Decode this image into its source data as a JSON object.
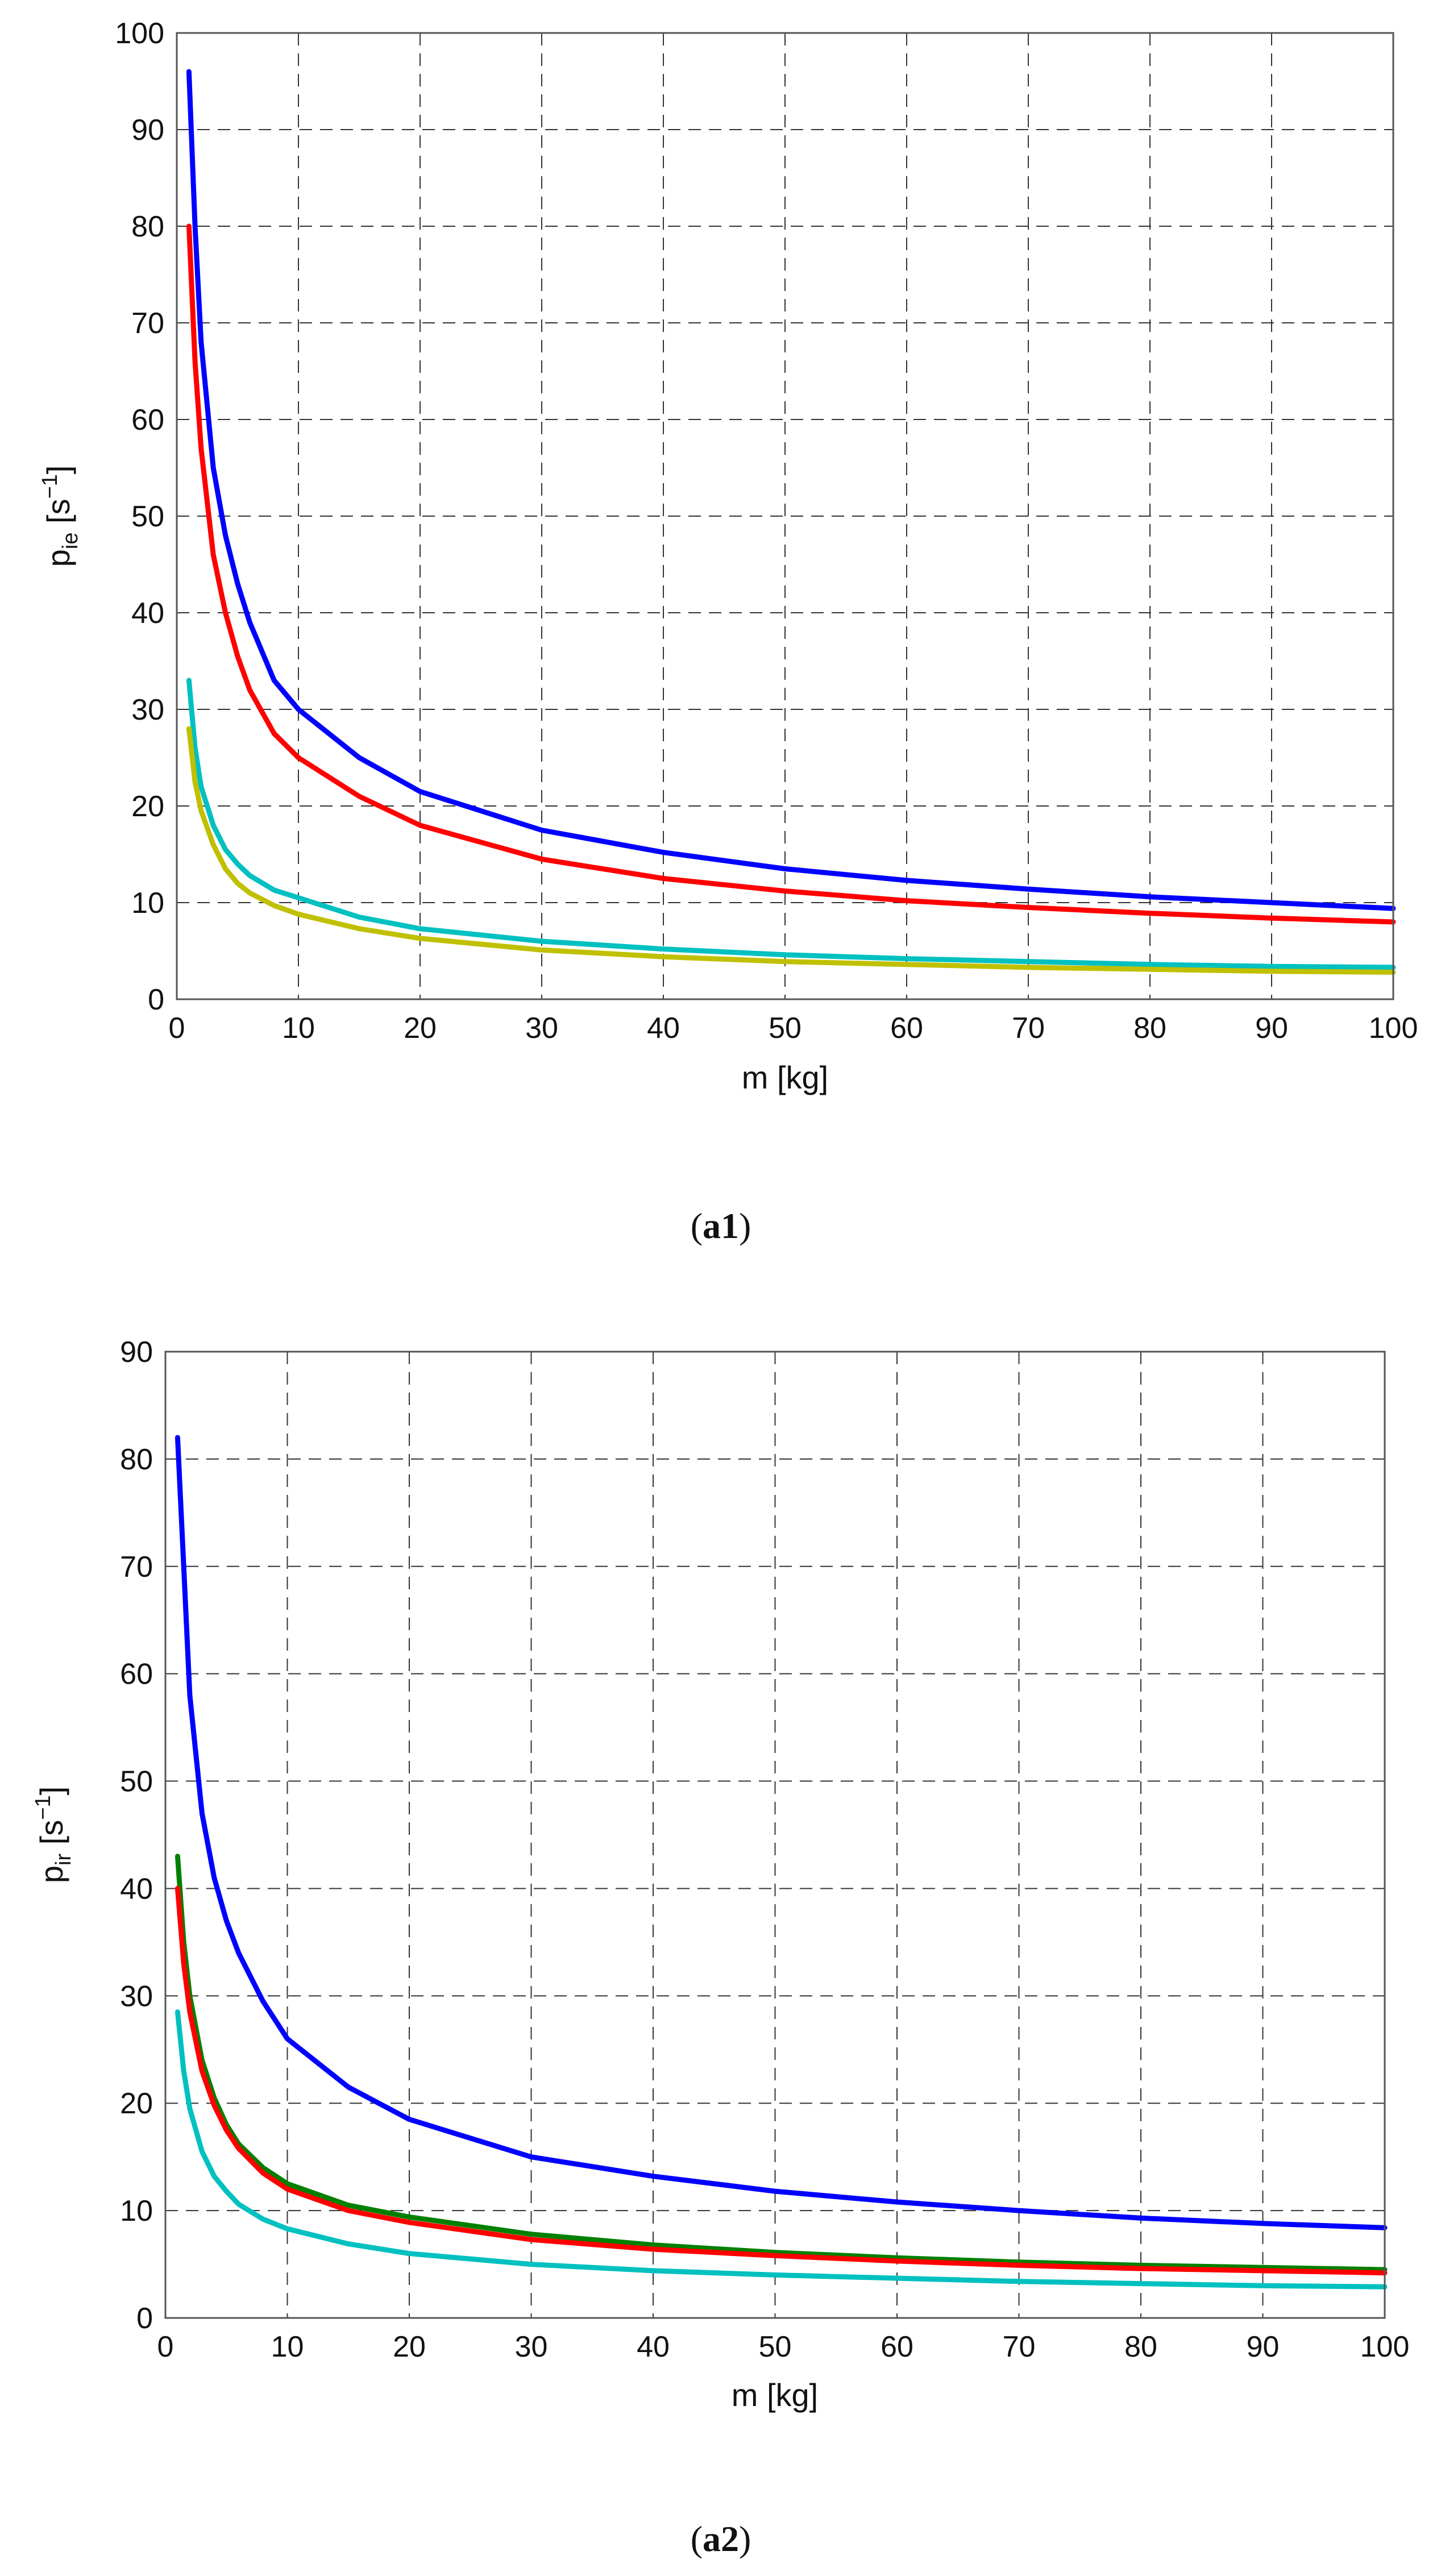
{
  "chart_data": [
    {
      "type": "line",
      "caption": {
        "open": "(",
        "bold": "a1",
        "close": ")"
      },
      "xlabel": "m [kg]",
      "ylabel": {
        "main": "p",
        "sub": "ie",
        "unit_open": " [s",
        "unit_sup": "−1",
        "unit_close": "]"
      },
      "xlim": [
        0,
        100
      ],
      "ylim": [
        0,
        100
      ],
      "xticks": [
        0,
        10,
        20,
        30,
        40,
        50,
        60,
        70,
        80,
        90,
        100
      ],
      "yticks": [
        0,
        10,
        20,
        30,
        40,
        50,
        60,
        70,
        80,
        90,
        100
      ],
      "grid": true,
      "series": [
        {
          "color": "#0000ff",
          "x": [
            1,
            1.5,
            2,
            3,
            4,
            5,
            6,
            8,
            10,
            15,
            20,
            30,
            40,
            50,
            60,
            70,
            80,
            90,
            100
          ],
          "y": [
            96,
            80,
            68,
            55,
            48,
            43,
            39,
            33,
            30,
            25,
            21.5,
            17.5,
            15.2,
            13.5,
            12.3,
            11.4,
            10.6,
            10,
            9.4
          ]
        },
        {
          "color": "#ff0000",
          "x": [
            1,
            1.5,
            2,
            3,
            4,
            5,
            6,
            8,
            10,
            15,
            20,
            30,
            40,
            50,
            60,
            70,
            80,
            90,
            100
          ],
          "y": [
            80,
            66,
            57,
            46,
            40,
            35.5,
            32,
            27.5,
            25,
            21,
            18,
            14.5,
            12.5,
            11.2,
            10.2,
            9.5,
            8.9,
            8.4,
            8
          ]
        },
        {
          "color": "#00c0c0",
          "x": [
            1,
            1.5,
            2,
            3,
            4,
            5,
            6,
            8,
            10,
            15,
            20,
            30,
            40,
            50,
            60,
            70,
            80,
            90,
            100
          ],
          "y": [
            33,
            26,
            22,
            18,
            15.5,
            14,
            12.8,
            11.3,
            10.5,
            8.5,
            7.3,
            6,
            5.2,
            4.6,
            4.2,
            3.9,
            3.6,
            3.4,
            3.3
          ]
        },
        {
          "color": "#c0c000",
          "x": [
            1,
            1.5,
            2,
            3,
            4,
            5,
            6,
            8,
            10,
            15,
            20,
            30,
            40,
            50,
            60,
            70,
            80,
            90,
            100
          ],
          "y": [
            28,
            22.5,
            19.5,
            16,
            13.5,
            12,
            11,
            9.7,
            8.8,
            7.3,
            6.3,
            5.1,
            4.4,
            3.9,
            3.6,
            3.3,
            3.1,
            2.9,
            2.8
          ]
        }
      ]
    },
    {
      "type": "line",
      "caption": {
        "open": "(",
        "bold": "a2",
        "close": ")"
      },
      "xlabel": "m [kg]",
      "ylabel": {
        "main": "p",
        "sub": "ir",
        "unit_open": " [s",
        "unit_sup": "−1",
        "unit_close": "]"
      },
      "xlim": [
        0,
        100
      ],
      "ylim": [
        0,
        90
      ],
      "xticks": [
        0,
        10,
        20,
        30,
        40,
        50,
        60,
        70,
        80,
        90,
        100
      ],
      "yticks": [
        0,
        10,
        20,
        30,
        40,
        50,
        60,
        70,
        80,
        90
      ],
      "grid": true,
      "series": [
        {
          "color": "#0000ff",
          "x": [
            1,
            1.5,
            2,
            3,
            4,
            5,
            6,
            8,
            10,
            15,
            20,
            30,
            40,
            50,
            60,
            70,
            80,
            90,
            100
          ],
          "y": [
            82,
            70,
            58,
            47,
            41,
            37,
            34,
            29.5,
            26,
            21.5,
            18.5,
            15,
            13.2,
            11.8,
            10.8,
            10,
            9.3,
            8.8,
            8.4
          ]
        },
        {
          "color": "#008000",
          "x": [
            1,
            1.5,
            2,
            3,
            4,
            5,
            6,
            8,
            10,
            15,
            20,
            30,
            40,
            50,
            60,
            70,
            80,
            90,
            100
          ],
          "y": [
            43,
            35,
            30,
            24,
            20.5,
            18,
            16.2,
            14,
            12.5,
            10.5,
            9.4,
            7.8,
            6.8,
            6.1,
            5.6,
            5.2,
            4.9,
            4.7,
            4.5
          ]
        },
        {
          "color": "#ff0000",
          "x": [
            1,
            1.5,
            2,
            3,
            4,
            5,
            6,
            8,
            10,
            15,
            20,
            30,
            40,
            50,
            60,
            70,
            80,
            90,
            100
          ],
          "y": [
            40,
            33,
            28.5,
            23,
            19.8,
            17.5,
            15.8,
            13.5,
            12,
            10,
            8.9,
            7.3,
            6.4,
            5.8,
            5.3,
            4.9,
            4.6,
            4.4,
            4.2
          ]
        },
        {
          "color": "#00c0c0",
          "x": [
            1,
            1.5,
            2,
            3,
            4,
            5,
            6,
            8,
            10,
            15,
            20,
            30,
            40,
            50,
            60,
            70,
            80,
            90,
            100
          ],
          "y": [
            28.5,
            23,
            19.5,
            15.5,
            13.2,
            11.8,
            10.6,
            9.2,
            8.3,
            6.9,
            6,
            5,
            4.4,
            4,
            3.7,
            3.4,
            3.2,
            3,
            2.9
          ]
        }
      ]
    }
  ]
}
